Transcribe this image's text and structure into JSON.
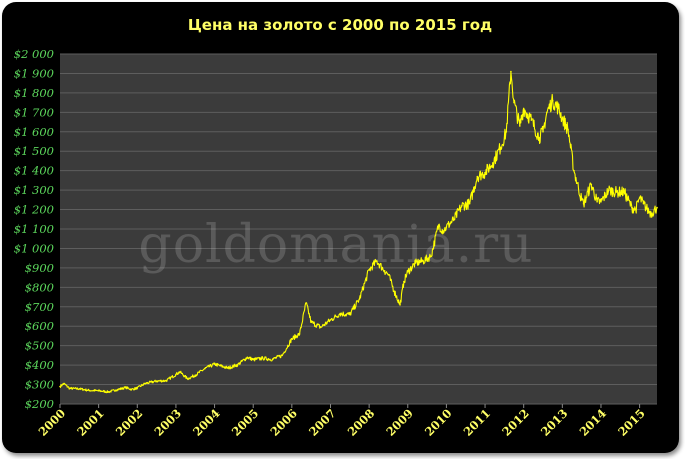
{
  "watermark": "goldomania.ru",
  "chart_data": {
    "type": "line",
    "title": "Цена на золото с 2000 по 2015 год",
    "xlabel": "",
    "ylabel": "",
    "x_ticks": [
      "2000",
      "2001",
      "2002",
      "2003",
      "2004",
      "2005",
      "2006",
      "2007",
      "2008",
      "2009",
      "2010",
      "2011",
      "2012",
      "2013",
      "2014",
      "2015"
    ],
    "y_ticks": [
      "$200",
      "$300",
      "$400",
      "$500",
      "$600",
      "$700",
      "$800",
      "$900",
      "$1 000",
      "$1 100",
      "$1 200",
      "$1 300",
      "$1 400",
      "$1 500",
      "$1 600",
      "$1 700",
      "$1 800",
      "$1 900",
      "$2 000"
    ],
    "xlim": [
      2000,
      2015.45
    ],
    "ylim": [
      200,
      2000
    ],
    "grid": true,
    "series": [
      {
        "line_color": "#ffff00",
        "x": [
          2000.0,
          2000.1,
          2000.25,
          2000.5,
          2000.75,
          2001.0,
          2001.25,
          2001.45,
          2001.7,
          2001.85,
          2002.0,
          2002.2,
          2002.5,
          2002.75,
          2003.0,
          2003.1,
          2003.3,
          2003.5,
          2003.75,
          2004.0,
          2004.25,
          2004.35,
          2004.6,
          2004.85,
          2005.0,
          2005.25,
          2005.5,
          2005.75,
          2006.0,
          2006.2,
          2006.37,
          2006.5,
          2006.75,
          2007.0,
          2007.25,
          2007.5,
          2007.75,
          2008.0,
          2008.2,
          2008.4,
          2008.5,
          2008.65,
          2008.8,
          2008.9,
          2009.0,
          2009.2,
          2009.4,
          2009.6,
          2009.8,
          2009.92,
          2010.0,
          2010.2,
          2010.4,
          2010.6,
          2010.8,
          2011.0,
          2011.2,
          2011.4,
          2011.55,
          2011.67,
          2011.75,
          2011.9,
          2012.0,
          2012.2,
          2012.4,
          2012.5,
          2012.6,
          2012.75,
          2012.9,
          2013.0,
          2013.15,
          2013.3,
          2013.5,
          2013.55,
          2013.75,
          2013.9,
          2014.0,
          2014.2,
          2014.4,
          2014.6,
          2014.8,
          2014.9,
          2015.0,
          2015.1,
          2015.2,
          2015.3,
          2015.45
        ],
        "y": [
          290,
          305,
          280,
          278,
          270,
          268,
          262,
          272,
          285,
          275,
          282,
          305,
          318,
          320,
          352,
          365,
          330,
          348,
          382,
          405,
          390,
          385,
          402,
          440,
          428,
          435,
          430,
          450,
          535,
          560,
          720,
          620,
          595,
          632,
          665,
          660,
          740,
          890,
          935,
          885,
          865,
          780,
          710,
          830,
          880,
          925,
          935,
          960,
          1120,
          1090,
          1110,
          1150,
          1220,
          1230,
          1370,
          1390,
          1440,
          1520,
          1600,
          1910,
          1750,
          1630,
          1720,
          1660,
          1570,
          1600,
          1700,
          1760,
          1720,
          1670,
          1610,
          1400,
          1250,
          1230,
          1330,
          1240,
          1240,
          1300,
          1290,
          1290,
          1210,
          1200,
          1260,
          1230,
          1200,
          1180,
          1210
        ]
      }
    ]
  }
}
